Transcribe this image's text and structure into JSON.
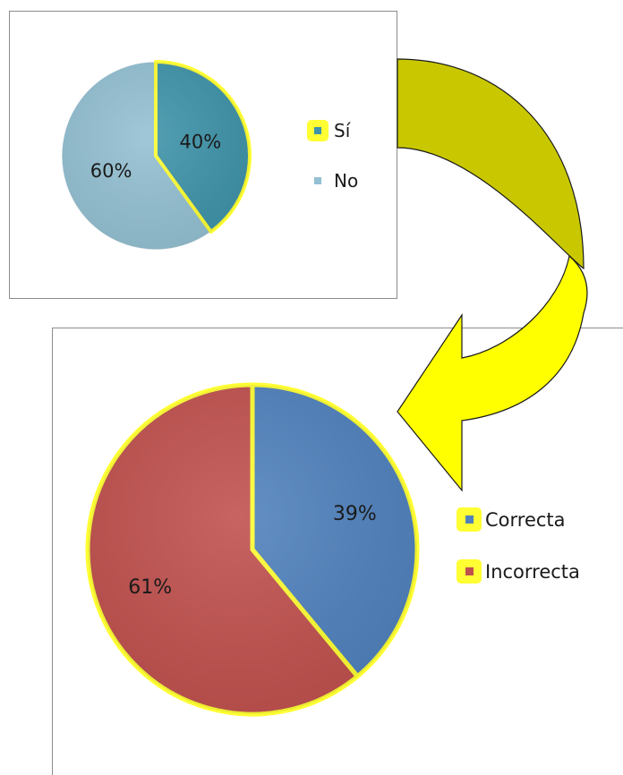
{
  "chart_data": [
    {
      "type": "pie",
      "categories": [
        "Sí",
        "No"
      ],
      "values": [
        40,
        60
      ],
      "labels": [
        "40%",
        "60%"
      ],
      "colors": [
        "#3e93a9",
        "#93c0d2"
      ],
      "legend": "right",
      "highlight": "Sí"
    },
    {
      "type": "pie",
      "categories": [
        "Correcta",
        "Incorrecta"
      ],
      "values": [
        39,
        61
      ],
      "labels": [
        "39%",
        "61%"
      ],
      "colors": [
        "#4f81bd",
        "#c0504d"
      ],
      "legend": "right",
      "highlight": "all"
    }
  ],
  "connector": {
    "icon": "curved-arrow-icon",
    "colors": [
      "#c9c800",
      "#ffff00"
    ]
  },
  "highlight_color": "#ffff33"
}
